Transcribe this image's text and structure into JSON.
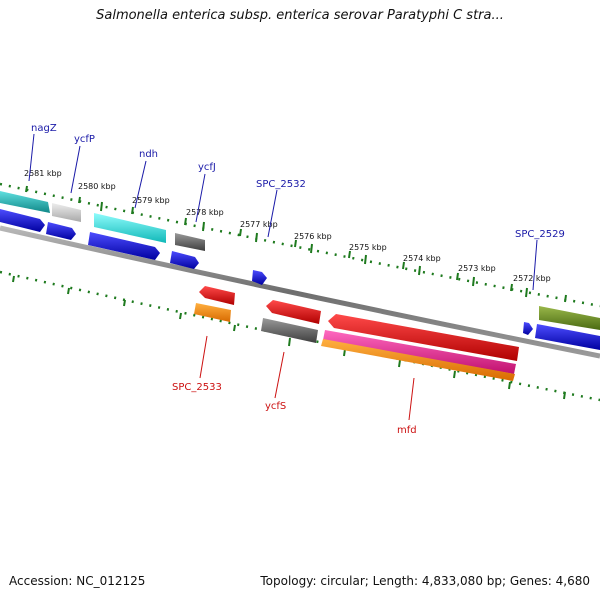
{
  "header": {
    "title": "Salmonella enterica subsp. enterica serovar Paratyphi C stra..."
  },
  "footer": {
    "accession": "Accession: NC_012125",
    "summary": "Topology: circular; Length: 4,833,080 bp; Genes: 4,680"
  },
  "scale_labels": [
    "2581 kbp",
    "2580 kbp",
    "2579 kbp",
    "2578 kbp",
    "2577 kbp",
    "2576 kbp",
    "2575 kbp",
    "2574 kbp",
    "2573 kbp",
    "2572 kbp"
  ],
  "gene_labels_top": [
    "nagZ",
    "ycfP",
    "ndh",
    "ycfJ",
    "SPC_2532",
    "SPC_2529"
  ],
  "gene_labels_bottom": [
    "SPC_2533",
    "ycfS",
    "mfd"
  ],
  "colors": {
    "background": "#ffffff",
    "backbone": "#808080",
    "tick_dots": "#1e7a1e",
    "label_top": "#1a1aa8",
    "label_bottom": "#cc1111",
    "cds_blue": "#1010e0",
    "cds_red": "#ee1010",
    "cds_cyan": "#19e0e0",
    "cds_teal": "#20c0c0",
    "cds_grey": "#707070",
    "cds_lightgrey": "#c8c8c8",
    "cds_orange": "#ff8c00",
    "cds_pink": "#f0309a",
    "cds_olive": "#6a8e23"
  }
}
